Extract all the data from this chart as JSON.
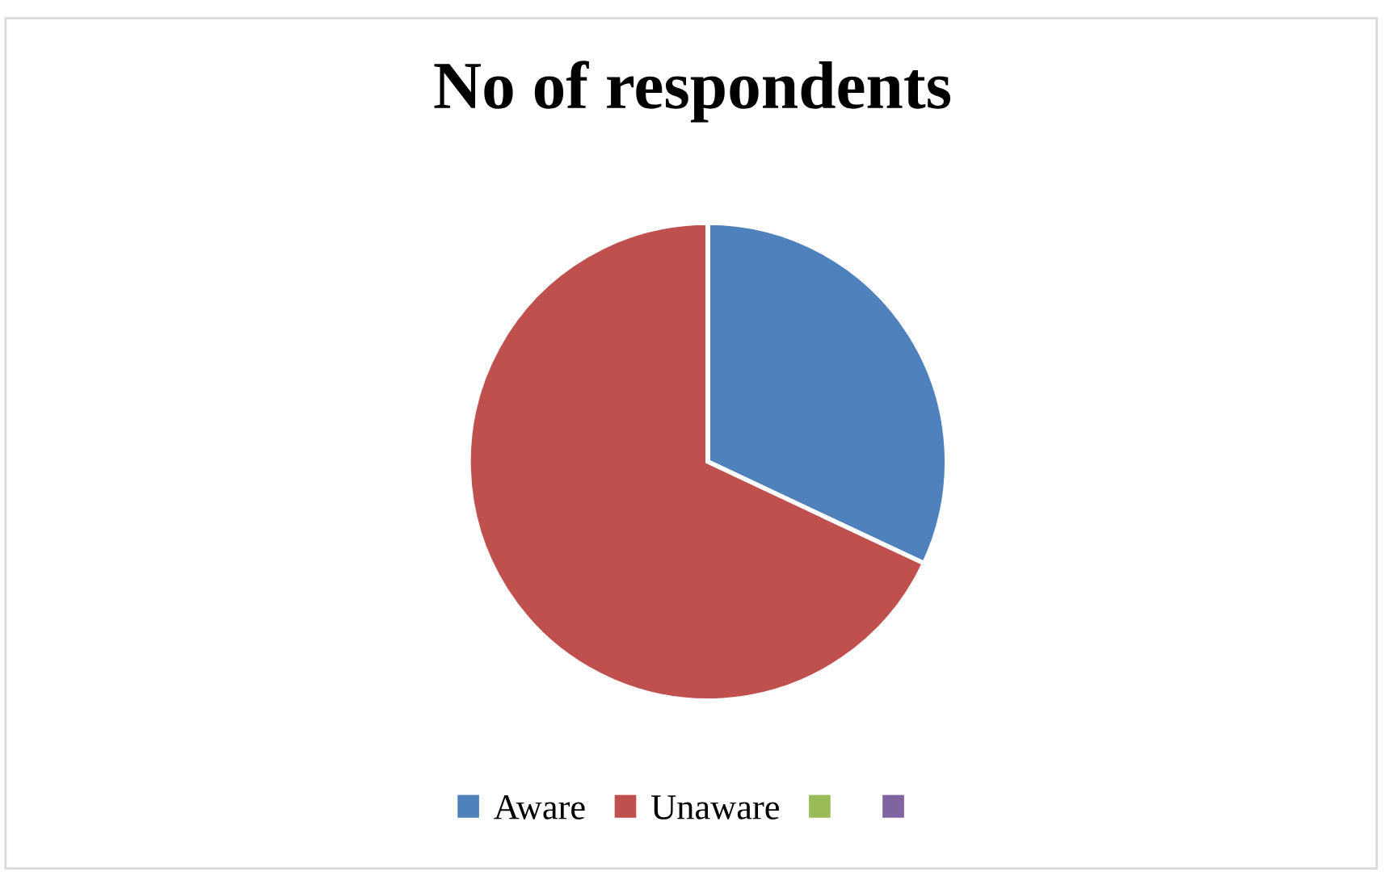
{
  "chart_data": {
    "type": "pie",
    "title": "No of respondents",
    "categories": [
      "Aware",
      "Unaware",
      null,
      null
    ],
    "values": [
      32,
      68,
      0,
      0
    ],
    "colors": [
      "#4f81bd",
      "#c0504d",
      "#9bbb59",
      "#8064a2"
    ],
    "legend": "bottom"
  }
}
